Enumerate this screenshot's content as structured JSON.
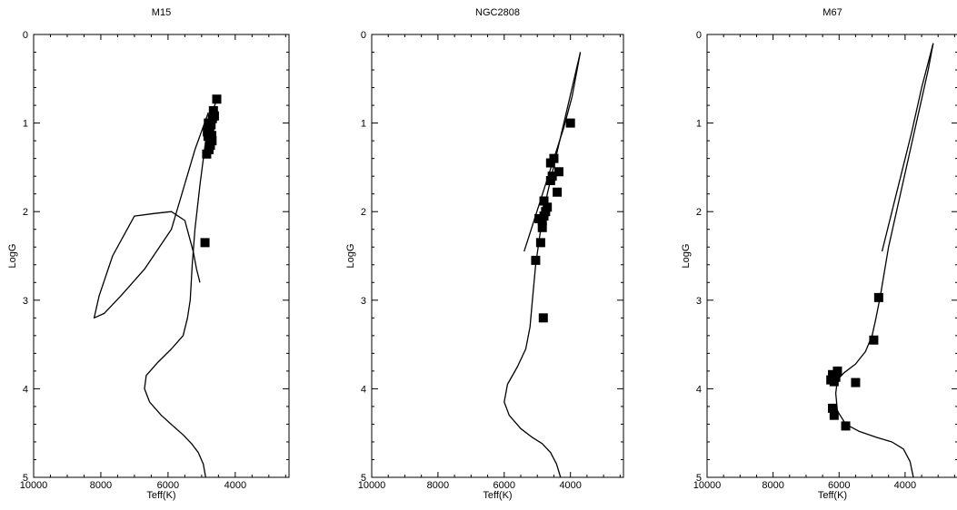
{
  "chart_data": [
    {
      "type": "scatter",
      "title": "M15",
      "xlabel": "Teff(K)",
      "ylabel": "LogG",
      "xlim": [
        10000,
        2400
      ],
      "ylim": [
        0,
        5
      ],
      "x_ticks": [
        10000,
        8000,
        6000,
        4000
      ],
      "x_tick_labels": [
        "10000",
        "8000",
        "6000",
        "4000"
      ],
      "y_ticks": [
        0,
        1,
        2,
        3,
        4,
        5
      ],
      "y_tick_labels": [
        "0",
        "1",
        "2",
        "3",
        "4",
        "5"
      ],
      "grid": false,
      "legend": "none",
      "series": [
        {
          "kind": "line",
          "color": "#000000",
          "x": [
            4880,
            4950,
            5100,
            5300,
            5550,
            5850,
            6200,
            6550,
            6700,
            6650,
            6300,
            5900,
            5550,
            5420,
            5340,
            5280,
            5200,
            5050,
            4880,
            4700,
            4520
          ],
          "y": [
            5.0,
            4.85,
            4.72,
            4.62,
            4.52,
            4.42,
            4.3,
            4.15,
            4.0,
            3.85,
            3.7,
            3.55,
            3.4,
            3.2,
            3.0,
            2.6,
            2.2,
            1.7,
            1.2,
            0.9,
            0.7
          ]
        },
        {
          "kind": "line",
          "color": "#000000",
          "x": [
            5050,
            5150,
            5250,
            5500,
            5900,
            6400,
            7000,
            7650,
            8050,
            8200,
            7900,
            7400,
            6700,
            5900,
            5200,
            4800
          ],
          "y": [
            2.8,
            2.65,
            2.45,
            2.1,
            2.0,
            2.02,
            2.05,
            2.5,
            2.95,
            3.2,
            3.15,
            2.95,
            2.65,
            2.2,
            1.3,
            0.88
          ]
        },
        {
          "kind": "markers",
          "marker": "square",
          "color": "#000000",
          "x": [
            4550,
            4650,
            4620,
            4680,
            4750,
            4720,
            4800,
            4760,
            4830,
            4700,
            4690,
            4740,
            4780,
            4850,
            4810,
            4900
          ],
          "y": [
            0.73,
            0.86,
            0.92,
            0.95,
            1.0,
            1.02,
            1.0,
            1.06,
            1.1,
            1.14,
            1.2,
            1.25,
            1.3,
            1.35,
            1.15,
            2.35
          ]
        }
      ]
    },
    {
      "type": "scatter",
      "title": "NGC2808",
      "xlabel": "Teff(K)",
      "ylabel": "LogG",
      "xlim": [
        10000,
        2400
      ],
      "ylim": [
        0,
        5
      ],
      "x_ticks": [
        10000,
        8000,
        6000,
        4000
      ],
      "x_tick_labels": [
        "10000",
        "8000",
        "6000",
        "4000"
      ],
      "y_ticks": [
        0,
        1,
        2,
        3,
        4,
        5
      ],
      "y_tick_labels": [
        "0",
        "1",
        "2",
        "3",
        "4",
        "5"
      ],
      "grid": false,
      "legend": "none",
      "series": [
        {
          "kind": "line",
          "color": "#000000",
          "x": [
            4300,
            4420,
            4600,
            4850,
            5150,
            5500,
            5850,
            6000,
            5900,
            5600,
            5350,
            5220,
            5150,
            5050,
            4900,
            4700,
            4450,
            4200,
            3950,
            3700
          ],
          "y": [
            5.0,
            4.85,
            4.72,
            4.62,
            4.55,
            4.45,
            4.3,
            4.15,
            3.95,
            3.75,
            3.55,
            3.3,
            3.0,
            2.6,
            2.2,
            1.8,
            1.4,
            1.0,
            0.6,
            0.2
          ]
        },
        {
          "kind": "line",
          "color": "#000000",
          "x": [
            5400,
            5100,
            4800,
            4500,
            4200,
            3950,
            3700
          ],
          "y": [
            2.45,
            2.1,
            1.75,
            1.4,
            1.05,
            0.7,
            0.2
          ]
        },
        {
          "kind": "markers",
          "marker": "square",
          "color": "#000000",
          "x": [
            4000,
            4500,
            4600,
            4350,
            4550,
            4600,
            4400,
            4800,
            4700,
            4750,
            4800,
            4850,
            4950,
            4850,
            4900,
            5050,
            4820
          ],
          "y": [
            1.0,
            1.4,
            1.45,
            1.55,
            1.6,
            1.65,
            1.78,
            1.88,
            1.95,
            2.0,
            2.05,
            2.1,
            2.08,
            2.18,
            2.35,
            2.55,
            3.2
          ]
        }
      ]
    },
    {
      "type": "scatter",
      "title": "M67",
      "xlabel": "Teff(K)",
      "ylabel": "LogG",
      "xlim": [
        10000,
        2400
      ],
      "ylim": [
        0,
        5
      ],
      "x_ticks": [
        10000,
        8000,
        6000,
        4000
      ],
      "x_tick_labels": [
        "10000",
        "8000",
        "6000",
        "4000"
      ],
      "y_ticks": [
        0,
        1,
        2,
        3,
        4,
        5
      ],
      "y_tick_labels": [
        "0",
        "1",
        "2",
        "3",
        "4",
        "5"
      ],
      "grid": false,
      "legend": "none",
      "series": [
        {
          "kind": "line",
          "color": "#000000",
          "x": [
            3750,
            3850,
            4050,
            4400,
            4850,
            5400,
            5800,
            6050,
            6100,
            6050,
            5850,
            5500,
            5200,
            5000,
            4880,
            4750,
            4500,
            4200,
            3900,
            3600,
            3300,
            3150
          ],
          "y": [
            5.0,
            4.82,
            4.68,
            4.6,
            4.55,
            4.48,
            4.4,
            4.25,
            4.05,
            3.9,
            3.82,
            3.72,
            3.58,
            3.4,
            3.2,
            2.95,
            2.4,
            1.9,
            1.4,
            0.9,
            0.4,
            0.1
          ]
        },
        {
          "kind": "line",
          "color": "#000000",
          "x": [
            4700,
            4400,
            4100,
            3800,
            3500,
            3150
          ],
          "y": [
            2.45,
            2.0,
            1.55,
            1.1,
            0.6,
            0.1
          ]
        },
        {
          "kind": "markers",
          "marker": "square",
          "color": "#000000",
          "x": [
            4800,
            4950,
            6050,
            6200,
            6100,
            6250,
            6150,
            5500,
            6200,
            6150,
            5800
          ],
          "y": [
            2.97,
            3.45,
            3.8,
            3.84,
            3.87,
            3.9,
            3.92,
            3.93,
            4.22,
            4.3,
            4.42
          ]
        }
      ]
    }
  ]
}
